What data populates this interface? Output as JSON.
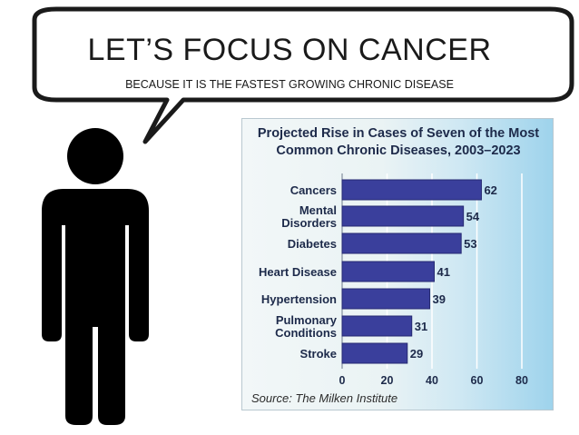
{
  "slide": {
    "title": "LET’S FOCUS ON CANCER",
    "subtitle": "BECAUSE IT IS THE FASTEST GROWING CHRONIC DISEASE"
  },
  "illustration": {
    "speech_bubble_icon": "speech-bubble-icon",
    "person_icon": "person-silhouette-icon"
  },
  "chart_data": {
    "type": "bar",
    "orientation": "horizontal",
    "title_lines": [
      "Projected Rise in Cases of Seven of the Most",
      "Common Chronic Diseases, 2003–2023"
    ],
    "categories": [
      [
        "Cancers"
      ],
      [
        "Mental",
        "Disorders"
      ],
      [
        "Diabetes"
      ],
      [
        "Heart Disease"
      ],
      [
        "Hypertension"
      ],
      [
        "Pulmonary",
        "Conditions"
      ],
      [
        "Stroke"
      ]
    ],
    "values": [
      62,
      54,
      53,
      41,
      39,
      31,
      29
    ],
    "value_labels": [
      "62",
      "54",
      "53",
      "41",
      "39",
      "31",
      "29"
    ],
    "xlim": [
      0,
      80
    ],
    "xticks": [
      0,
      20,
      40,
      60,
      80
    ],
    "xtick_labels": [
      "0",
      "20",
      "40",
      "60",
      "80"
    ],
    "grid": true,
    "source": "Source: The Milken Institute",
    "colors": {
      "bar": "#3a3f9c",
      "bar_edge": "#262a72",
      "text": "#1d2a4a",
      "gridline": "#ffffff"
    }
  }
}
